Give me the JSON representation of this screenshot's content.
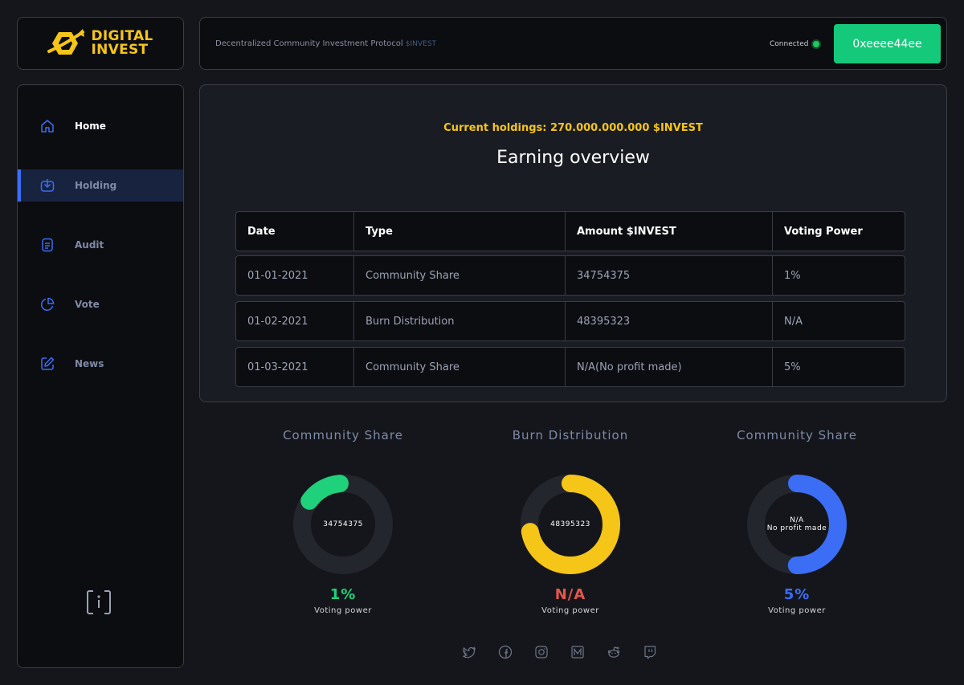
{
  "logo": {
    "line1": "DIGITAL",
    "line2": "INVEST"
  },
  "header": {
    "tagline": "Decentralized Community Investment Protocol",
    "ticker": "$INVEST",
    "status": "Connected",
    "wallet": "0xeeee44ee"
  },
  "sidebar": {
    "items": [
      {
        "label": "Home",
        "icon": "home-icon"
      },
      {
        "label": "Holding",
        "icon": "download-icon"
      },
      {
        "label": "Audit",
        "icon": "document-icon"
      },
      {
        "label": "Vote",
        "icon": "pie-chart-icon"
      },
      {
        "label": "News",
        "icon": "edit-icon"
      }
    ],
    "info_icon": "info-icon"
  },
  "main": {
    "holdings": "Current holdings: 270.000.000.000 $INVEST",
    "title": "Earning overview",
    "columns": [
      "Date",
      "Type",
      "Amount $INVEST",
      "Voting Power"
    ],
    "rows": [
      [
        "01-01-2021",
        "Community Share",
        "34754375",
        "1%"
      ],
      [
        "01-02-2021",
        "Burn Distribution",
        "48395323",
        "N/A"
      ],
      [
        "01-03-2021",
        "Community Share",
        "N/A(No profit made)",
        "5%"
      ]
    ]
  },
  "donuts": [
    {
      "title": "Community Share",
      "center1": "34754375",
      "center2": "",
      "pct": "1%",
      "sub": "Voting power",
      "color": "#1ed17a",
      "fill": 0.14,
      "start": -55
    },
    {
      "title": "Burn Distribution",
      "center1": "48395323",
      "center2": "",
      "pct": "N/A",
      "sub": "Voting power",
      "color": "#f5c518",
      "fill": 0.72,
      "start": 0
    },
    {
      "title": "Community Share",
      "center1": "N/A",
      "center2": "No profit made",
      "pct": "5%",
      "sub": "Voting power",
      "color": "#3b6ef5",
      "fill": 0.5,
      "start": 0
    }
  ],
  "colors": {
    "pct_na": "#e2574c",
    "accent": "#f5c518",
    "connect": "#14c97a"
  },
  "social": [
    "twitter-icon",
    "facebook-icon",
    "instagram-icon",
    "medium-icon",
    "reddit-icon",
    "twitch-icon"
  ]
}
